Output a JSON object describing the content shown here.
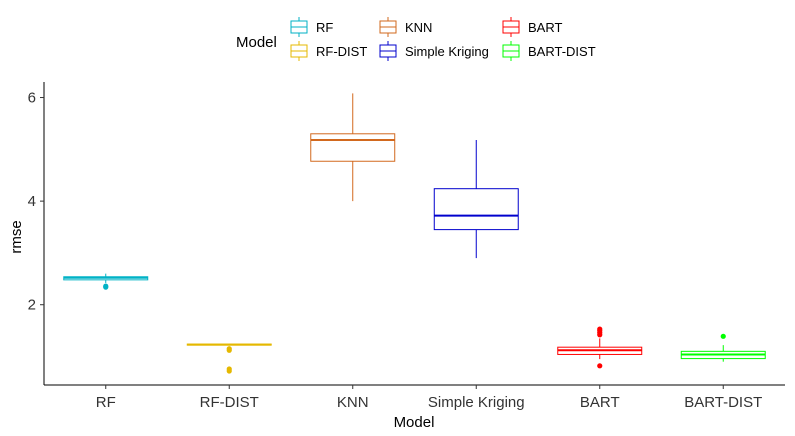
{
  "chart_data": {
    "type": "boxplot",
    "xlabel": "Model",
    "ylabel": "rmse",
    "ylim": [
      0.45,
      6.3
    ],
    "yticks": [
      2,
      4,
      6
    ],
    "grid": false,
    "legend": {
      "title": "Model",
      "position": "top",
      "entries": [
        "RF",
        "RF-DIST",
        "KNN",
        "Simple Kriging",
        "BART",
        "BART-DIST"
      ]
    },
    "categories": [
      "RF",
      "RF-DIST",
      "KNN",
      "Simple Kriging",
      "BART",
      "BART-DIST"
    ],
    "series": [
      {
        "name": "RF",
        "color": "#00B2C6",
        "whisker_low": 2.42,
        "q1": 2.48,
        "median": 2.52,
        "q3": 2.54,
        "whisker_high": 2.6,
        "outliers": [
          2.34,
          2.36
        ]
      },
      {
        "name": "RF-DIST",
        "color": "#E5B800",
        "whisker_low": 1.21,
        "q1": 1.22,
        "median": 1.23,
        "q3": 1.24,
        "whisker_high": 1.25,
        "outliers": [
          1.15,
          1.12,
          0.76,
          0.72
        ]
      },
      {
        "name": "KNN",
        "color": "#D2691E",
        "whisker_low": 4.0,
        "q1": 4.77,
        "median": 5.18,
        "q3": 5.3,
        "whisker_high": 6.08,
        "outliers": []
      },
      {
        "name": "Simple Kriging",
        "color": "#0000CD",
        "whisker_low": 2.9,
        "q1": 3.45,
        "median": 3.72,
        "q3": 4.24,
        "whisker_high": 5.18,
        "outliers": []
      },
      {
        "name": "BART",
        "color": "#FF0000",
        "whisker_low": 0.95,
        "q1": 1.04,
        "median": 1.12,
        "q3": 1.18,
        "whisker_high": 1.35,
        "outliers": [
          1.42,
          1.46,
          1.5,
          1.53,
          0.82
        ]
      },
      {
        "name": "BART-DIST",
        "color": "#00FF00",
        "whisker_low": 0.9,
        "q1": 0.96,
        "median": 1.04,
        "q3": 1.1,
        "whisker_high": 1.22,
        "outliers": [
          1.39
        ]
      }
    ]
  }
}
